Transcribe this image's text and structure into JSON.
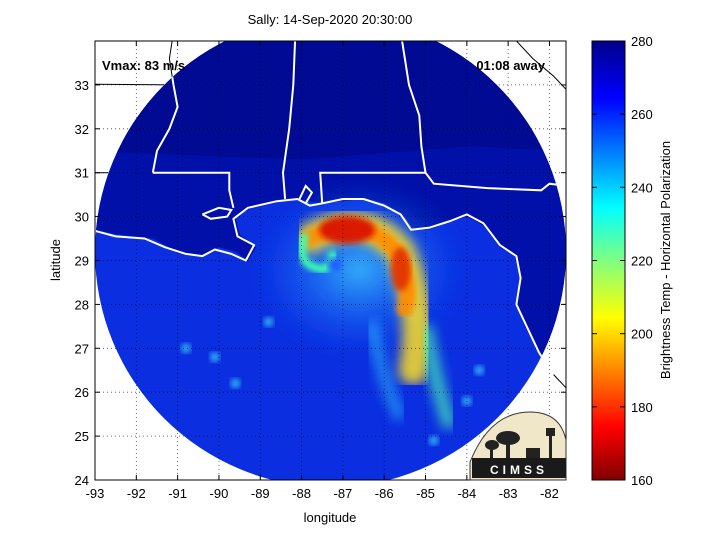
{
  "title": "Sally: 14-Sep-2020 20:30:00",
  "vmax_label": "Vmax: 83 m/s",
  "time_away_label": "01:08 away",
  "axes": {
    "xlabel": "longitude",
    "ylabel": "latitude",
    "x_range": [
      -93,
      -81.6
    ],
    "y_range": [
      24,
      34
    ],
    "x_ticks": [
      -93,
      -92,
      -91,
      -90,
      -89,
      -88,
      -87,
      -86,
      -85,
      -84,
      -83,
      -82
    ],
    "y_ticks": [
      24,
      25,
      26,
      27,
      28,
      29,
      30,
      31,
      32,
      33
    ],
    "grid": "dotted"
  },
  "colorbar": {
    "label": "Brightness Temp - Horizontal Polarization",
    "range": [
      160,
      280
    ],
    "ticks": [
      160,
      180,
      200,
      220,
      240,
      260,
      280
    ],
    "colormap": "jet"
  },
  "swath": {
    "center": [
      -87.3,
      29.2
    ],
    "radius_deg": 5.7
  },
  "storm_center": [
    -87.2,
    28.9
  ],
  "logo": {
    "text": "CIMSS"
  },
  "colors": {
    "background_dark": "#00006e",
    "ocean_blue": "#0a2ee0",
    "coast": "#ffffff"
  }
}
